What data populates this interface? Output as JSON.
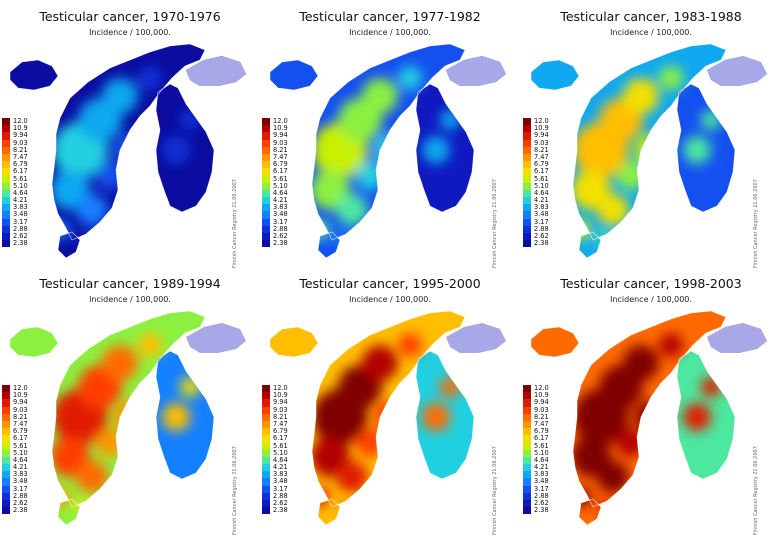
{
  "subtitle": "Incidence / 100,000.",
  "credit": "Finnish Cancer Registry 21.06.2007",
  "legend_values": [
    "12.0",
    "10.9",
    "9.94",
    "9.03",
    "8.21",
    "7.47",
    "6.79",
    "6.17",
    "5.61",
    "5.10",
    "4.64",
    "4.21",
    "3.83",
    "3.48",
    "3.17",
    "2.88",
    "2.62",
    "2.38"
  ],
  "legend_colors": [
    "#7f0000",
    "#b30000",
    "#e01a00",
    "#ff3c00",
    "#ff6a00",
    "#ff9400",
    "#ffbe00",
    "#f4e000",
    "#c8f000",
    "#8cf040",
    "#4ce8a0",
    "#20d0e0",
    "#10a8f0",
    "#1480ff",
    "#1450f0",
    "#1030d8",
    "#1018c0",
    "#0c0ca0"
  ],
  "panels": [
    {
      "title": "Testicular cancer, 1970-1976",
      "heat": 0.05
    },
    {
      "title": "Testicular cancer, 1977-1982",
      "heat": 0.25
    },
    {
      "title": "Testicular cancer, 1983-1988",
      "heat": 0.4
    },
    {
      "title": "Testicular cancer, 1989-1994",
      "heat": 0.62
    },
    {
      "title": "Testicular cancer, 1995-2000",
      "heat": 0.78
    },
    {
      "title": "Testicular cancer, 1998-2003",
      "heat": 0.92
    }
  ]
}
